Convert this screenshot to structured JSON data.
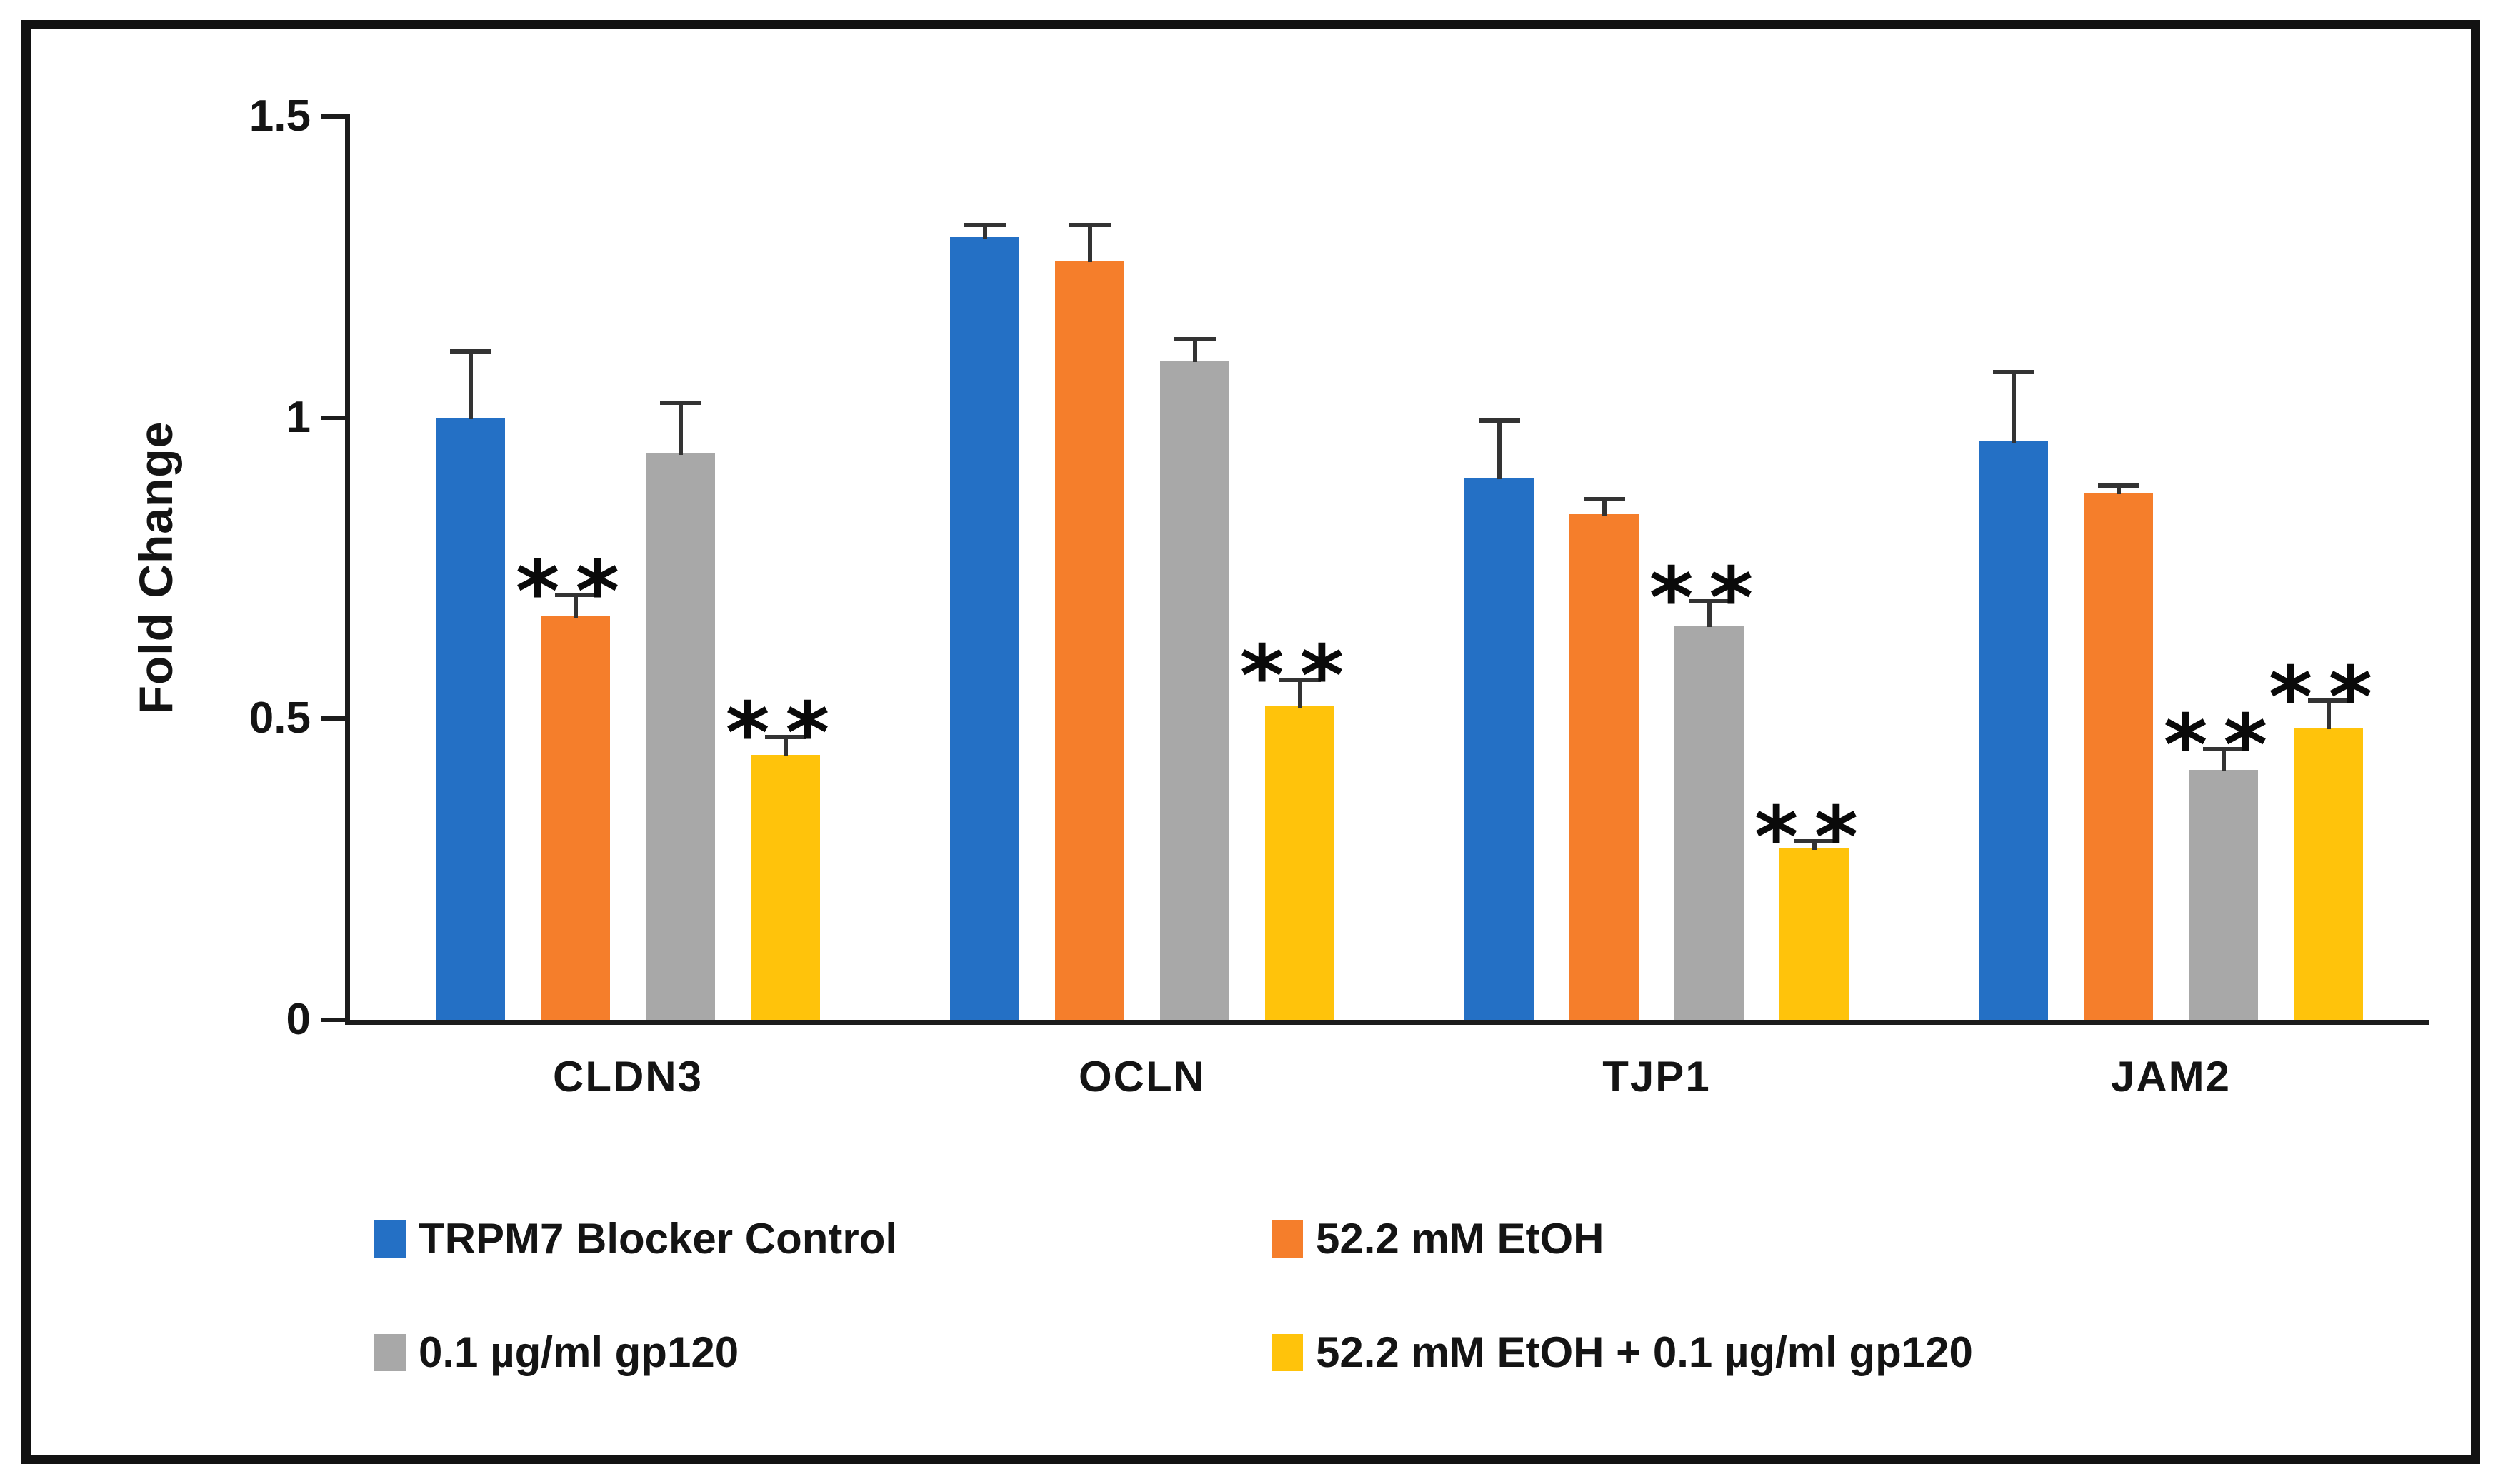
{
  "figure": {
    "background": "#ffffff",
    "frame_color": "#121212",
    "axis_color": "#1c1c1c",
    "error_bar_color": "#333333",
    "text_color": "#141414"
  },
  "chart_data": {
    "type": "bar",
    "title": "",
    "xlabel": "",
    "ylabel": "Fold Change",
    "ylim": [
      0,
      1.5
    ],
    "ytick_values": [
      0,
      0.5,
      1,
      1.5
    ],
    "ytick_labels": [
      "0",
      "0.5",
      "1",
      "1.5"
    ],
    "grid": "off",
    "legend_position": "bottom",
    "significance_marker": "**",
    "categories": [
      "CLDN3",
      "OCLN",
      "TJP1",
      "JAM2"
    ],
    "series": [
      {
        "name": "TRPM7 Blocker Control",
        "color": "#2470C5",
        "values": [
          1.0,
          1.3,
          0.9,
          0.96
        ],
        "errors": [
          0.11,
          0.02,
          0.095,
          0.115
        ],
        "sig": [
          "",
          "",
          "",
          ""
        ]
      },
      {
        "name": "52.2 mM EtOH",
        "color": "#F57E2B",
        "values": [
          0.67,
          1.26,
          0.84,
          0.875
        ],
        "errors": [
          0.035,
          0.06,
          0.025,
          0.012
        ],
        "sig": [
          "**",
          "",
          "",
          ""
        ]
      },
      {
        "name": "0.1 µg/ml gp120",
        "color": "#A8A8A8",
        "values": [
          0.94,
          1.095,
          0.655,
          0.415
        ],
        "errors": [
          0.085,
          0.035,
          0.04,
          0.035
        ],
        "sig": [
          "",
          "",
          "**",
          "**"
        ]
      },
      {
        "name": "52.2 mM EtOH + 0.1 µg/ml gp120",
        "color": "#FFC30B",
        "values": [
          0.44,
          0.52,
          0.285,
          0.485
        ],
        "errors": [
          0.03,
          0.045,
          0.012,
          0.045
        ],
        "sig": [
          "**",
          "**",
          "**",
          "**"
        ]
      }
    ]
  }
}
